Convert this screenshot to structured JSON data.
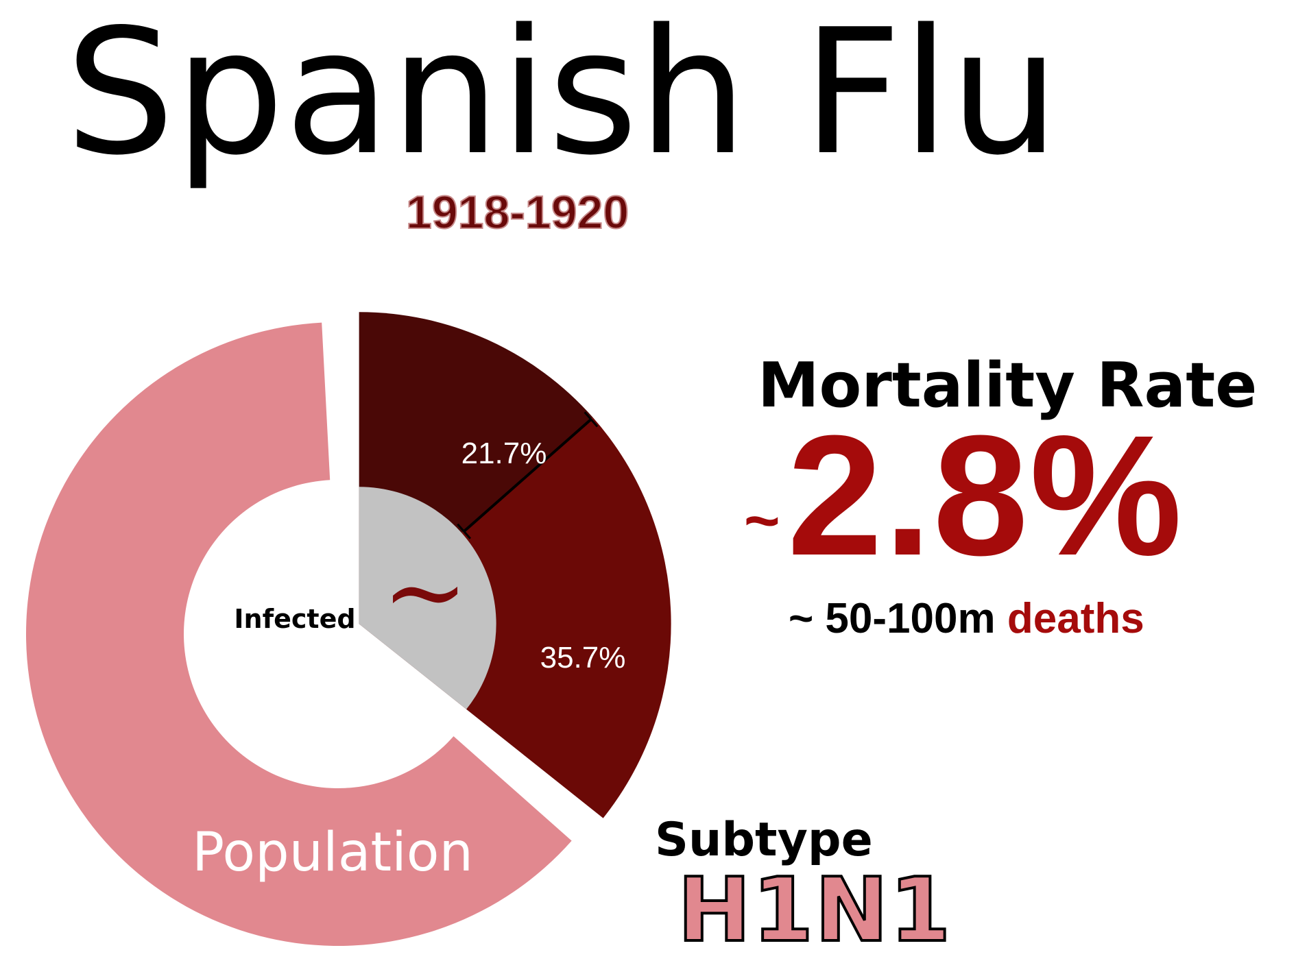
{
  "title": "Spanish Flu",
  "years": "1918-1920",
  "colors": {
    "population": "#e1888f",
    "infected_outer": "#6b0906",
    "infected_dark": "#4a0806",
    "infected_inner": "#c2c2c2",
    "accent": "#a50b0b"
  },
  "chart_data": {
    "type": "pie",
    "title": "",
    "slices": [
      {
        "label": "Population",
        "value": 64.3
      },
      {
        "label": "Infected",
        "value": 35.7
      }
    ],
    "infected_breakdown": [
      {
        "label": "21.7%",
        "value": 21.7
      },
      {
        "label": "35.7%",
        "value": 35.7
      }
    ],
    "center_mark": "~"
  },
  "mortality": {
    "label": "Mortality Rate",
    "tilde": "~",
    "value": "2.8%",
    "deaths_prefix": "~ 50-100m",
    "deaths_word": "deaths"
  },
  "subtype": {
    "label": "Subtype",
    "value": "H1N1"
  }
}
